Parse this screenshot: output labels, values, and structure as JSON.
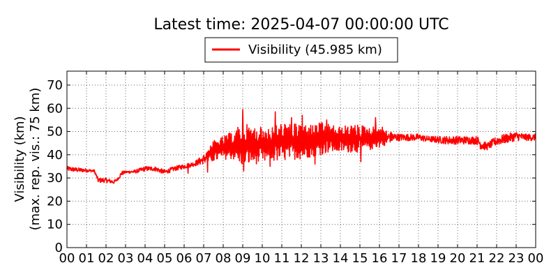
{
  "chart_data": {
    "type": "line",
    "title": "Latest time: 2025-04-07 00:00:00 UTC",
    "xlabel": "",
    "ylabel_line1": "Visibility (km)",
    "ylabel_line2": "(max. rep. vis.: 75 km)",
    "x_ticks": [
      "00",
      "01",
      "02",
      "03",
      "04",
      "05",
      "06",
      "07",
      "08",
      "09",
      "10",
      "11",
      "12",
      "13",
      "14",
      "15",
      "16",
      "17",
      "18",
      "19",
      "20",
      "21",
      "22",
      "23",
      "00"
    ],
    "y_ticks": [
      0,
      10,
      20,
      30,
      40,
      50,
      60,
      70
    ],
    "xlim_hours": [
      0,
      24
    ],
    "ylim": [
      0,
      76
    ],
    "grid": true,
    "legend_position": "top-center",
    "series": [
      {
        "name": "Visibility (45.985 km)",
        "color": "#ff0000",
        "envelope": {
          "hours": [
            0,
            0.5,
            1.0,
            1.4,
            1.6,
            2.0,
            2.4,
            2.6,
            2.8,
            3.0,
            3.5,
            4.0,
            4.5,
            5.0,
            5.5,
            6.0,
            6.5,
            7.0,
            7.5,
            8.0,
            8.5,
            9.0,
            9.5,
            10.0,
            10.5,
            11.0,
            11.5,
            12.0,
            12.5,
            13.0,
            13.5,
            14.0,
            14.5,
            15.0,
            15.5,
            16.0,
            16.5,
            17.0,
            17.5,
            18.0,
            18.5,
            19.0,
            19.5,
            20.0,
            20.5,
            21.0,
            21.2,
            21.5,
            22.0,
            22.5,
            23.0,
            23.5,
            24.0
          ],
          "low": [
            33,
            32.5,
            32.5,
            32.5,
            28,
            28,
            27.5,
            29,
            31,
            32,
            32,
            33,
            33,
            31.5,
            33,
            34,
            35,
            36,
            37,
            38,
            38,
            35,
            36,
            36,
            37,
            37,
            38,
            38,
            39,
            40,
            41,
            41,
            41,
            41,
            42,
            43,
            45,
            46,
            46,
            46,
            45.5,
            45,
            44.5,
            44.5,
            44.5,
            44.5,
            42,
            42,
            44,
            45,
            46,
            46,
            46
          ],
          "high": [
            35,
            34.5,
            34,
            33.5,
            30,
            30,
            29,
            30,
            33,
            33,
            33.5,
            35,
            35,
            33.5,
            35,
            36,
            37,
            40,
            46,
            48,
            50,
            54,
            52,
            52,
            52,
            54,
            53,
            54,
            53,
            54,
            53,
            52,
            53,
            53,
            52,
            53,
            50,
            49,
            49,
            49,
            48,
            48,
            48,
            48,
            48,
            48,
            47,
            45,
            48,
            49,
            50,
            49,
            49
          ]
        },
        "spikes": [
          {
            "hour": 9.0,
            "value": 59.5
          },
          {
            "hour": 9.05,
            "value": 33
          },
          {
            "hour": 10.67,
            "value": 58.5
          },
          {
            "hour": 10.4,
            "value": 35
          },
          {
            "hour": 11.5,
            "value": 56
          },
          {
            "hour": 12.05,
            "value": 57
          },
          {
            "hour": 12.7,
            "value": 36
          },
          {
            "hour": 13.3,
            "value": 55
          },
          {
            "hour": 15.8,
            "value": 56
          },
          {
            "hour": 15.05,
            "value": 37
          },
          {
            "hour": 7.2,
            "value": 32.5
          },
          {
            "hour": 6.2,
            "value": 32
          }
        ],
        "latest_value": 45.985
      }
    ]
  }
}
